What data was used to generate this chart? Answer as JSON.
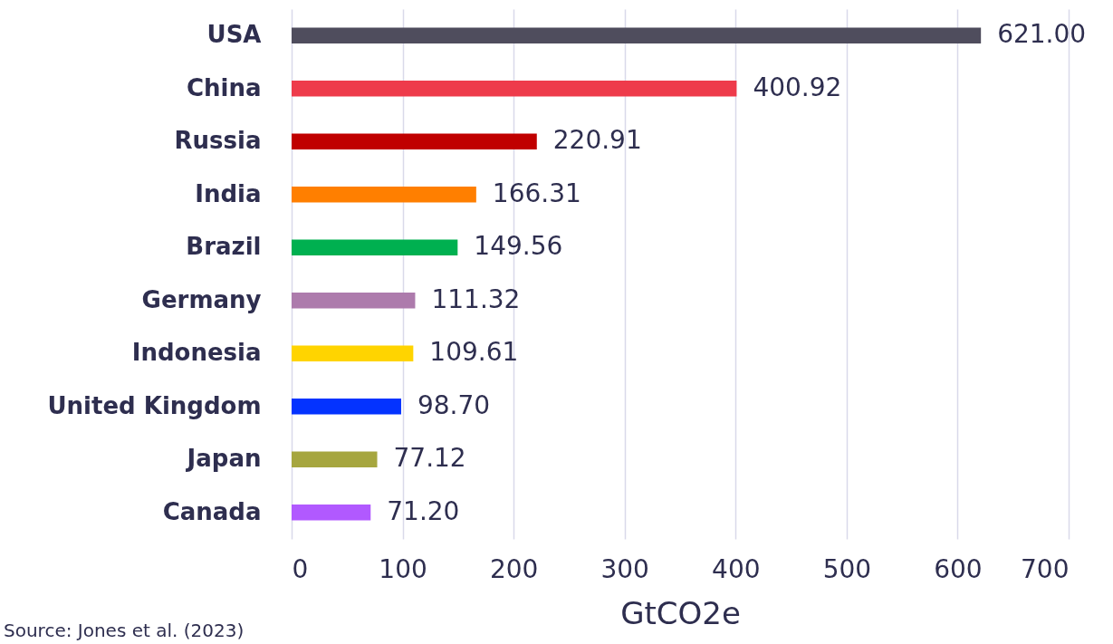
{
  "chart_data": {
    "type": "bar",
    "orientation": "horizontal",
    "xlabel": "GtCO2e",
    "categories": [
      "USA",
      "China",
      "Russia",
      "India",
      "Brazil",
      "Germany",
      "Indonesia",
      "United Kingdom",
      "Japan",
      "Canada"
    ],
    "values": [
      621.0,
      400.92,
      220.91,
      166.31,
      149.56,
      111.32,
      109.61,
      98.7,
      77.12,
      71.2
    ],
    "value_labels": [
      "621.00",
      "400.92",
      "220.91",
      "166.31",
      "149.56",
      "111.32",
      "109.61",
      "98.70",
      "77.12",
      "71.20"
    ],
    "colors": [
      "#4f4d5d",
      "#ee3b4b",
      "#c00000",
      "#ff7f00",
      "#00b050",
      "#ad7bac",
      "#ffd400",
      "#0433ff",
      "#a6a63f",
      "#b159ff"
    ],
    "xlim": [
      0,
      700
    ],
    "xticks": [
      0,
      100,
      200,
      300,
      400,
      500,
      600,
      700
    ],
    "grid": "x",
    "annotations": [
      "Source: Jones et al. (2023)"
    ]
  }
}
